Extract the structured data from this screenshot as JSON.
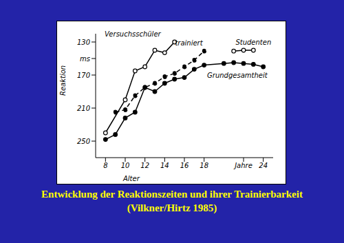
{
  "chart_data": {
    "type": "line",
    "title": "Entwicklung der Reaktionszeiten und ihrer Trainierbarkeit",
    "subtitle": "(Vilkner/Hirtz 1985)",
    "x_label": "Alter",
    "y_label": "Reaktion",
    "xlim": [
      7,
      25
    ],
    "xticks": [
      8,
      10,
      12,
      14,
      16,
      18,
      {
        "value": 22,
        "label": "Jahre"
      },
      24
    ],
    "ylim": [
      270,
      120
    ],
    "yticks": [
      130,
      {
        "value": 150,
        "label": "ms"
      },
      170,
      210,
      250
    ],
    "grid": false,
    "series": [
      {
        "name": "Versuchsschüler",
        "color": "#000000",
        "marker": "circle_open",
        "line_style": "solid",
        "x": [
          8,
          10,
          11,
          12,
          13,
          14,
          15
        ],
        "values": [
          240,
          200,
          165,
          160,
          140,
          143,
          130
        ]
      },
      {
        "name": "trainiert",
        "color": "#000000",
        "marker": "circle_filled",
        "line_style": "dashed",
        "x": [
          9,
          10,
          11,
          12,
          13,
          14,
          15,
          16,
          17,
          18
        ],
        "values": [
          215,
          212,
          195,
          185,
          180,
          172,
          168,
          160,
          152,
          141
        ]
      },
      {
        "name": "Studenten",
        "color": "#000000",
        "marker": "circle_open",
        "line_style": "solid",
        "x": [
          21,
          22,
          23
        ],
        "values": [
          141,
          140,
          140
        ]
      },
      {
        "name": "Grundgesamtheit",
        "color": "#000000",
        "marker": "circle_filled",
        "line_style": "solid",
        "x": [
          8,
          9,
          10,
          11,
          12,
          13,
          14,
          15,
          16,
          17,
          18,
          20,
          21,
          22,
          23,
          24
        ],
        "values": [
          248,
          242,
          222,
          215,
          185,
          190,
          180,
          175,
          173,
          163,
          158,
          156,
          155,
          156,
          157,
          160
        ]
      }
    ]
  }
}
